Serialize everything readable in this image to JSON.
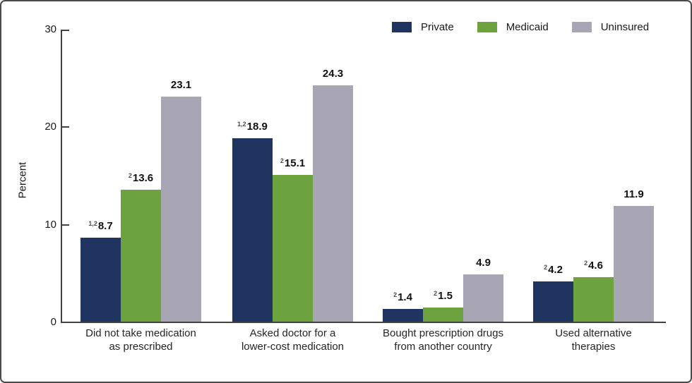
{
  "chart_data": {
    "type": "bar",
    "title": "",
    "ylabel": "Percent",
    "ylim": [
      0,
      30
    ],
    "yticks": [
      0,
      10,
      20,
      30
    ],
    "grid": false,
    "legend_position": "top-right",
    "categories": [
      {
        "line1": "Did not take medication",
        "line2": "as prescribed"
      },
      {
        "line1": "Asked doctor for a",
        "line2": "lower-cost medication"
      },
      {
        "line1": "Bought prescription drugs",
        "line2": "from another country"
      },
      {
        "line1": "Used alternative",
        "line2": "therapies"
      }
    ],
    "series": [
      {
        "name": "Private",
        "color": "#1f3460",
        "values": [
          8.7,
          18.9,
          1.4,
          4.2
        ],
        "footnote_superscripts": [
          "1,2",
          "1,2",
          "2",
          "2"
        ]
      },
      {
        "name": "Medicaid",
        "color": "#6ca33e",
        "values": [
          13.6,
          15.1,
          1.5,
          4.6
        ],
        "footnote_superscripts": [
          "2",
          "2",
          "2",
          "2"
        ]
      },
      {
        "name": "Uninsured",
        "color": "#a8a5b5",
        "values": [
          23.1,
          24.3,
          4.9,
          11.9
        ],
        "footnote_superscripts": [
          "",
          "",
          "",
          ""
        ]
      }
    ]
  }
}
